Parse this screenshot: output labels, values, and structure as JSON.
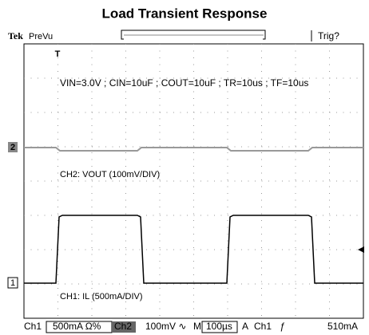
{
  "title": "Load Transient Response",
  "header": {
    "brand": "Tek",
    "mode": "PreVu",
    "trigger": "Trig?"
  },
  "trigger_marker": "T",
  "conditions": "VIN=3.0V ; CIN=10uF ; COUT=10uF ; TR=10us ; TF=10us",
  "channels": [
    {
      "marker": "1",
      "label": "CH1: IL (500mA/DIV)"
    },
    {
      "marker": "2",
      "label": "CH2: VOUT (100mV/DIV)"
    }
  ],
  "status_bar": [
    "Ch1",
    "500mA Ω%",
    "Ch2",
    "100mV ∿",
    "M",
    "100µs",
    "A",
    "Ch1",
    "ƒ",
    "510mA"
  ]
}
